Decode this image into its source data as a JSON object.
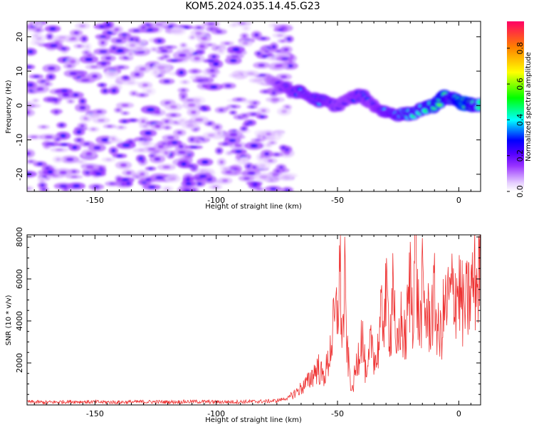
{
  "title": "KOM5.2024.035.14.45.G23",
  "chart_data": [
    {
      "type": "heatmap",
      "title": "KOM5.2024.035.14.45.G23",
      "xlabel": "Height of straight line (km)",
      "ylabel": "Frequency (Hz)",
      "xlim": [
        -178,
        9
      ],
      "ylim": [
        -25,
        24.5
      ],
      "xticks": [
        -150,
        -100,
        -50,
        0
      ],
      "yticks": [
        -20,
        -10,
        0,
        10,
        20
      ],
      "colorbar": {
        "label": "Normalized spectral amplitude",
        "range": [
          0,
          0.95
        ],
        "ticks": [
          "0.0",
          "0.2",
          "0.4",
          "0.6",
          "0.8"
        ],
        "colormap": [
          "#ffffff",
          "#e6cfff",
          "#9933ff",
          "#6600ff",
          "#0000ff",
          "#00ffff",
          "#00ff00",
          "#ffff00",
          "#ff7f00",
          "#ff0066"
        ]
      },
      "noise_region": {
        "x": [
          -178,
          -75
        ],
        "y": [
          -25,
          24.5
        ],
        "amplitude": [
          0.05,
          0.3
        ]
      },
      "ridge": {
        "x": [
          -78,
          -72,
          -66,
          -60,
          -55,
          -50,
          -45,
          -40,
          -35,
          -30,
          -25,
          -20,
          -15,
          -10,
          -6,
          -3,
          0,
          3,
          6,
          9
        ],
        "y": [
          8,
          5,
          4,
          2,
          1,
          0,
          2,
          3,
          0,
          -2,
          -2.5,
          -2.5,
          -1,
          0,
          2.5,
          2,
          1,
          0.5,
          0,
          0
        ],
        "amplitude": [
          0.2,
          0.3,
          0.35,
          0.35,
          0.4,
          0.3,
          0.3,
          0.35,
          0.3,
          0.4,
          0.45,
          0.5,
          0.5,
          0.55,
          0.6,
          0.5,
          0.6,
          0.7,
          0.55,
          0.5
        ]
      }
    },
    {
      "type": "line",
      "xlabel": "Height of straight line (km)",
      "ylabel": "SNR (10 * v/v)",
      "xlim": [
        -178,
        9
      ],
      "ylim": [
        0,
        8100
      ],
      "xticks": [
        -150,
        -100,
        -50,
        0
      ],
      "yticks": [
        2000,
        4000,
        6000,
        8000
      ],
      "color": "#ee3333",
      "series": [
        {
          "x": [
            -178,
            -170,
            -160,
            -150,
            -140,
            -130,
            -120,
            -110,
            -100,
            -90,
            -80,
            -75,
            -70,
            -66,
            -62,
            -60,
            -58,
            -56,
            -54,
            -52,
            -50,
            -49,
            -48,
            -47,
            -46,
            -44,
            -42,
            -40,
            -38,
            -36,
            -34,
            -32,
            -30,
            -28,
            -27,
            -26,
            -24,
            -22,
            -20,
            -19,
            -18,
            -17,
            -16,
            -15,
            -14,
            -12,
            -10,
            -8,
            -6,
            -4,
            -2,
            0,
            2,
            4,
            6,
            8,
            9
          ],
          "y": [
            150,
            120,
            160,
            140,
            130,
            150,
            140,
            160,
            140,
            150,
            170,
            200,
            350,
            700,
            1100,
            1500,
            1800,
            1300,
            1900,
            3400,
            4500,
            6500,
            3000,
            5600,
            2500,
            600,
            2000,
            3500,
            1000,
            3200,
            2000,
            4000,
            5000,
            3500,
            6900,
            2000,
            4000,
            3000,
            6000,
            4500,
            8000,
            5000,
            3500,
            5500,
            4500,
            4000,
            5000,
            3000,
            4500,
            5000,
            5500,
            5500,
            4500,
            5000,
            5800,
            6000,
            6900
          ]
        }
      ]
    }
  ]
}
